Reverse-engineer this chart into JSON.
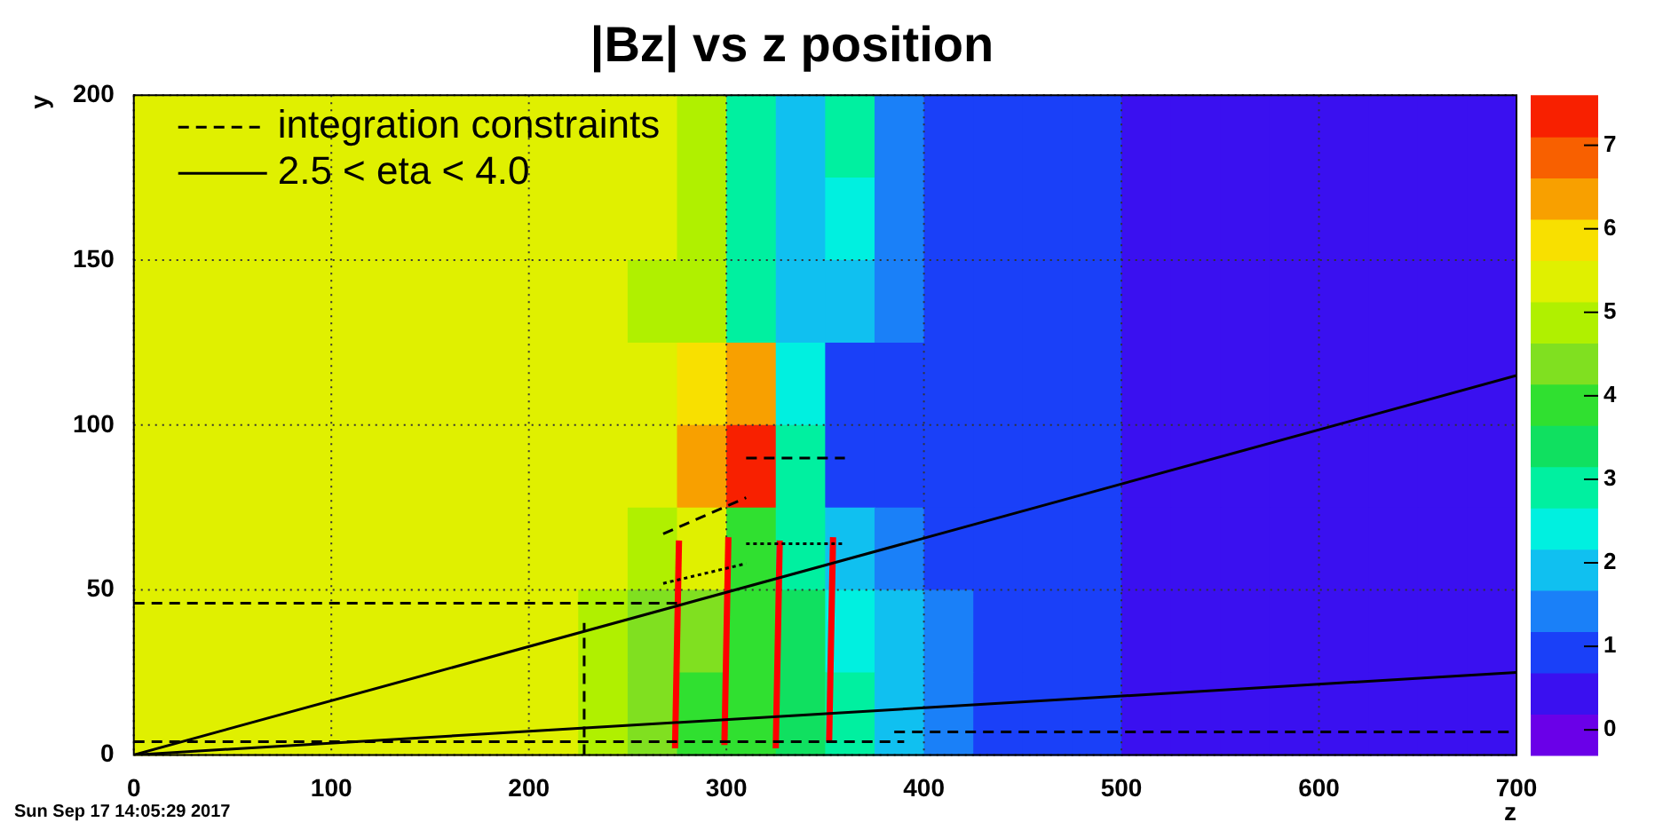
{
  "chart_data": {
    "type": "heatmap",
    "title": "|Bz| vs z position",
    "xlabel": "z",
    "ylabel": "y",
    "annotations": [
      "Sun Sep 17 14:05:29 2017"
    ],
    "x": [
      12.5,
      37.5,
      62.5,
      87.5,
      112.5,
      137.5,
      162.5,
      187.5,
      212.5,
      237.5,
      262.5,
      287.5,
      312.5,
      337.5,
      362.5,
      387.5,
      412.5,
      437.5,
      462.5,
      487.5,
      512.5,
      537.5,
      562.5,
      587.5,
      612.5,
      637.5,
      662.5,
      687.5
    ],
    "cells": [
      [
        5.5,
        5.5,
        5.5,
        5.5,
        5.5,
        5.5,
        5.5,
        5.5,
        5.5,
        5.5,
        5.2,
        4.8,
        3.0,
        2.0,
        3.0,
        1.5,
        1.0,
        1.0,
        1.0,
        1.0,
        0.5,
        0.5,
        0.5,
        0.5,
        0.5,
        0.5,
        0.5,
        0.5
      ],
      [
        5.5,
        5.5,
        5.5,
        5.5,
        5.5,
        5.5,
        5.5,
        5.5,
        5.5,
        5.5,
        5.2,
        4.8,
        3.0,
        2.0,
        2.5,
        1.5,
        1.0,
        1.0,
        1.0,
        1.0,
        0.5,
        0.5,
        0.5,
        0.5,
        0.5,
        0.5,
        0.5,
        0.5
      ],
      [
        5.5,
        5.5,
        5.5,
        5.5,
        5.5,
        5.5,
        5.5,
        5.5,
        5.5,
        5.5,
        5.0,
        4.8,
        3.0,
        2.0,
        2.0,
        1.5,
        1.0,
        1.0,
        1.0,
        1.0,
        0.5,
        0.5,
        0.5,
        0.5,
        0.5,
        0.5,
        0.5,
        0.5
      ],
      [
        5.5,
        5.5,
        5.5,
        5.5,
        5.5,
        5.5,
        5.5,
        5.5,
        5.5,
        5.5,
        5.5,
        6.0,
        6.5,
        2.5,
        0.8,
        1.0,
        1.0,
        1.0,
        1.0,
        1.0,
        0.5,
        0.5,
        0.5,
        0.5,
        0.5,
        0.5,
        0.5,
        0.5
      ],
      [
        5.5,
        5.5,
        5.5,
        5.5,
        5.5,
        5.5,
        5.5,
        5.5,
        5.5,
        5.5,
        5.5,
        6.2,
        7.5,
        3.0,
        0.8,
        1.0,
        1.0,
        1.0,
        1.0,
        1.0,
        0.5,
        0.5,
        0.5,
        0.5,
        0.5,
        0.5,
        0.5,
        0.5
      ],
      [
        5.5,
        5.5,
        5.5,
        5.5,
        5.5,
        5.5,
        5.5,
        5.5,
        5.5,
        5.5,
        5.0,
        5.2,
        4.0,
        3.0,
        2.0,
        1.5,
        1.0,
        1.0,
        1.0,
        1.0,
        0.5,
        0.5,
        0.5,
        0.5,
        0.5,
        0.5,
        0.5,
        0.5
      ],
      [
        5.5,
        5.5,
        5.5,
        5.5,
        5.5,
        5.5,
        5.5,
        5.5,
        5.5,
        5.0,
        4.5,
        4.2,
        4.0,
        3.5,
        2.5,
        1.8,
        1.2,
        1.0,
        1.0,
        1.0,
        0.5,
        0.5,
        0.5,
        0.5,
        0.5,
        0.5,
        0.5,
        0.5
      ],
      [
        5.5,
        5.5,
        5.5,
        5.5,
        5.5,
        5.5,
        5.5,
        5.5,
        5.5,
        5.0,
        4.5,
        4.0,
        4.0,
        3.5,
        3.0,
        2.0,
        1.5,
        1.0,
        1.0,
        1.0,
        0.5,
        0.5,
        0.5,
        0.5,
        0.5,
        0.5,
        0.5,
        0.5
      ]
    ],
    "clim": [
      -0.3,
      7.6
    ],
    "cticks": [
      0,
      1,
      2,
      3,
      4,
      5,
      6,
      7
    ],
    "xlim": [
      0,
      700
    ],
    "xticks": [
      0,
      100,
      200,
      300,
      400,
      500,
      600,
      700
    ],
    "ylim": [
      0,
      200
    ],
    "yticks": [
      0,
      50,
      100,
      150,
      200
    ],
    "grid": true,
    "legend": "top left",
    "series": [
      {
        "type": "line",
        "name": "integration constraints",
        "color": "#000000",
        "line_style": "dashed",
        "x": [
          0,
          275
        ],
        "values": [
          46,
          46
        ]
      },
      {
        "type": "line",
        "color": "#000000",
        "line_style": "dashed",
        "x": [
          228,
          228
        ],
        "values": [
          0,
          40
        ]
      },
      {
        "type": "line",
        "color": "#000000",
        "line_style": "dashed",
        "x": [
          0,
          390
        ],
        "values": [
          4,
          4
        ]
      },
      {
        "type": "line",
        "color": "#000000",
        "line_style": "dashed",
        "x": [
          385,
          700
        ],
        "values": [
          7,
          7
        ]
      },
      {
        "type": "line",
        "color": "#000000",
        "line_style": "dashed",
        "x": [
          310,
          360
        ],
        "values": [
          90,
          90
        ]
      },
      {
        "type": "line",
        "color": "#000000",
        "line_style": "dashed",
        "x": [
          268,
          310
        ],
        "values": [
          67,
          78
        ]
      },
      {
        "type": "line",
        "color": "#000000",
        "line_style": "dotted",
        "x": [
          310,
          360
        ],
        "values": [
          64,
          64
        ]
      },
      {
        "type": "line",
        "color": "#000000",
        "line_style": "dotted",
        "x": [
          268,
          310
        ],
        "values": [
          52,
          58
        ]
      },
      {
        "type": "line",
        "name": "2.5 < eta < 4.0",
        "color": "#000000",
        "line_style": "solid",
        "x": [
          0,
          700
        ],
        "values": [
          0,
          115
        ]
      },
      {
        "type": "line",
        "color": "#000000",
        "line_style": "solid",
        "x": [
          0,
          700
        ],
        "values": [
          0,
          25
        ]
      },
      {
        "type": "line",
        "color": "#ff0000",
        "line_style": "solid",
        "x": [
          276,
          274
        ],
        "values": [
          65,
          2
        ]
      },
      {
        "type": "line",
        "color": "#ff0000",
        "line_style": "solid",
        "x": [
          301,
          299
        ],
        "values": [
          66,
          3
        ]
      },
      {
        "type": "line",
        "color": "#ff0000",
        "line_style": "solid",
        "x": [
          327,
          325
        ],
        "values": [
          65,
          2
        ]
      },
      {
        "type": "line",
        "color": "#ff0000",
        "line_style": "solid",
        "x": [
          354,
          352
        ],
        "values": [
          66,
          4
        ]
      }
    ]
  }
}
